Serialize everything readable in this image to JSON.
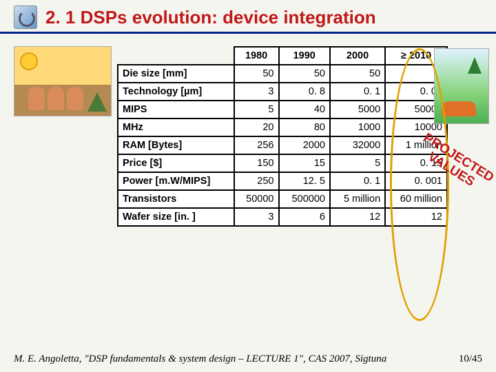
{
  "title": "2. 1 DSPs evolution: device integration",
  "table": {
    "headers": [
      "1980",
      "1990",
      "2000",
      "≥ 2010"
    ],
    "rows": [
      {
        "label": "Die size [mm]",
        "cells": [
          "50",
          "50",
          "50",
          "5"
        ]
      },
      {
        "label": "Technology [µm]",
        "cells": [
          "3",
          "0. 8",
          "0. 1",
          "0. 02"
        ]
      },
      {
        "label": "MIPS",
        "cells": [
          "5",
          "40",
          "5000",
          "50000"
        ]
      },
      {
        "label": "MHz",
        "cells": [
          "20",
          "80",
          "1000",
          "10000"
        ]
      },
      {
        "label": "RAM [Bytes]",
        "cells": [
          "256",
          "2000",
          "32000",
          "1 million"
        ]
      },
      {
        "label": "Price [$]",
        "cells": [
          "150",
          "15",
          "5",
          "0. 15"
        ]
      },
      {
        "label": "Power [m.W/MIPS]",
        "cells": [
          "250",
          "12. 5",
          "0. 1",
          "0. 001"
        ]
      },
      {
        "label": "Transistors",
        "cells": [
          "50000",
          "500000",
          "5 million",
          "60 million"
        ]
      },
      {
        "label": "Wafer size [in. ]",
        "cells": [
          "3",
          "6",
          "12",
          "12"
        ]
      }
    ]
  },
  "stamp": "PROJECTED\nVALUES",
  "footer_citation": "M. E. Angoletta, \"DSP fundamentals & system design – LECTURE 1\", CAS 2007, Sigtuna",
  "footer_page": "10/45",
  "colors": {
    "title": "#c01818",
    "underline": "#002288",
    "oval": "#e0a000",
    "stamp": "#c01818",
    "border": "#000000",
    "bg": "#f5f5f0"
  },
  "fontsizes": {
    "title": 26,
    "table": 14.5,
    "stamp": 19,
    "footer": 15
  }
}
